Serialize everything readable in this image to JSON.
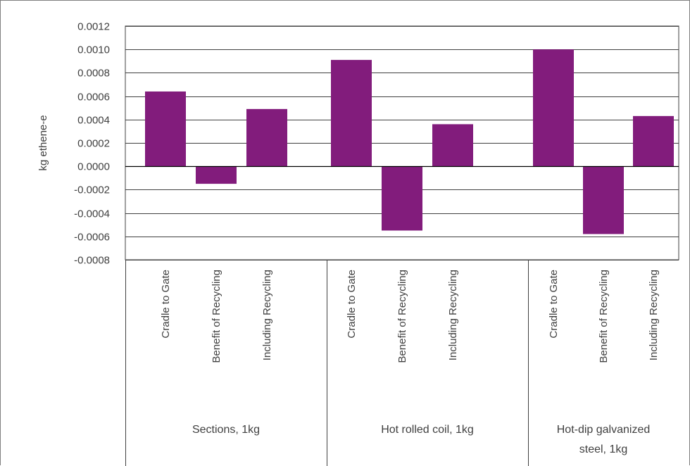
{
  "chart_data": {
    "type": "bar",
    "ylabel": "kg ethene-e",
    "ylim": [
      -0.0008,
      0.0012
    ],
    "yticks": [
      "0.0012",
      "0.0010",
      "0.0008",
      "0.0006",
      "0.0004",
      "0.0002",
      "0.0000",
      "-0.0002",
      "-0.0004",
      "-0.0006",
      "-0.0008"
    ],
    "ytick_values": [
      0.0012,
      0.001,
      0.0008,
      0.0006,
      0.0004,
      0.0002,
      0.0,
      -0.0002,
      -0.0004,
      -0.0006,
      -0.0008
    ],
    "grid": true,
    "bar_color": "#821c7c",
    "groups": [
      {
        "name": "Sections, 1kg",
        "categories": [
          "Cradle to Gate",
          "Benefit of Recycling",
          "Including Recycling"
        ],
        "values": [
          0.00064,
          -0.00015,
          0.00049
        ]
      },
      {
        "name": "Hot rolled coil, 1kg",
        "categories": [
          "Cradle to Gate",
          "Benefit of Recycling",
          "Including Recycling"
        ],
        "values": [
          0.00091,
          -0.00055,
          0.00036
        ]
      },
      {
        "name": "Hot-dip galvanized steel, 1kg",
        "name_lines": [
          "Hot-dip galvanized",
          "steel, 1kg"
        ],
        "categories": [
          "Cradle to Gate",
          "Benefit of Recycling",
          "Including Recycling"
        ],
        "values": [
          0.001,
          -0.00058,
          0.00043
        ]
      }
    ]
  }
}
